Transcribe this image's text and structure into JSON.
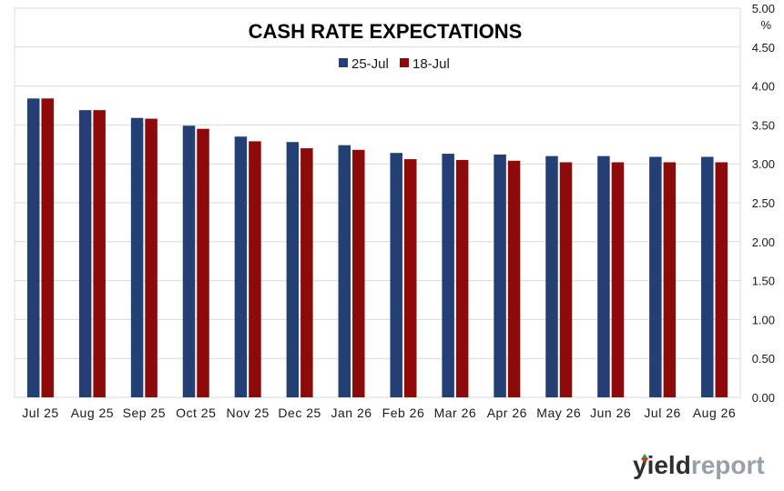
{
  "chart_data": {
    "type": "bar",
    "title": "CASH RATE EXPECTATIONS",
    "ylabel": "%",
    "ylim": [
      0,
      5
    ],
    "yticks": [
      "0.00",
      "0.50",
      "1.00",
      "1.50",
      "2.00",
      "2.50",
      "3.00",
      "3.50",
      "4.00",
      "4.50",
      "5.00"
    ],
    "categories": [
      "Jul 25",
      "Aug 25",
      "Sep 25",
      "Oct 25",
      "Nov 25",
      "Dec 25",
      "Jan 26",
      "Feb 26",
      "Mar 26",
      "Apr 26",
      "May 26",
      "Jun 26",
      "Jul 26",
      "Aug 26"
    ],
    "series": [
      {
        "name": "25-Jul",
        "color": "#243f73",
        "values": [
          3.84,
          3.69,
          3.59,
          3.49,
          3.35,
          3.28,
          3.24,
          3.14,
          3.13,
          3.12,
          3.1,
          3.1,
          3.09,
          3.09
        ]
      },
      {
        "name": "18-Jul",
        "color": "#8c0a0a",
        "values": [
          3.84,
          3.69,
          3.58,
          3.45,
          3.29,
          3.2,
          3.18,
          3.06,
          3.05,
          3.04,
          3.02,
          3.02,
          3.02,
          3.02
        ]
      }
    ],
    "grid": true,
    "legend_position": "top-center"
  },
  "brand": {
    "part1": "yield",
    "part2": "report",
    "mark_colors": [
      "#2e9e3f",
      "#c0392b"
    ]
  }
}
